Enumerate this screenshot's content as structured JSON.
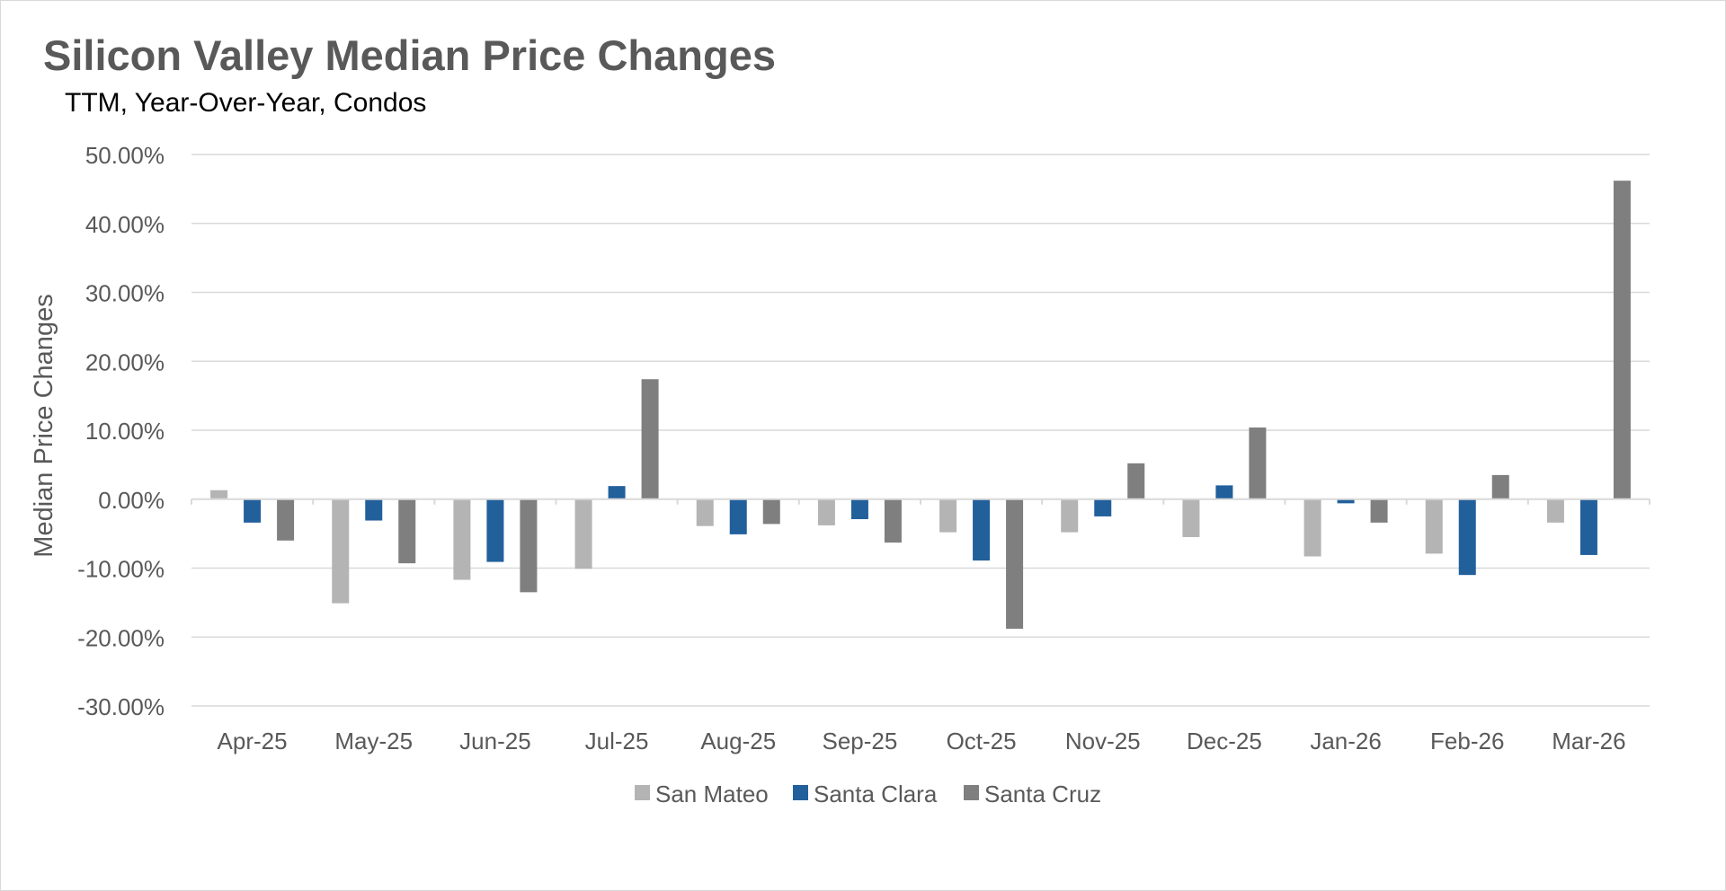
{
  "chart_data": {
    "type": "bar",
    "title": "Silicon Valley Median Price Changes",
    "subtitle": "TTM, Year-Over-Year,  Condos",
    "xlabel": "",
    "ylabel": "Median Price Changes",
    "ylim": [
      -30,
      50
    ],
    "yticks": [
      50,
      40,
      30,
      20,
      10,
      0,
      -10,
      -20,
      -30
    ],
    "ytick_labels": [
      "50.00%",
      "40.00%",
      "30.00%",
      "20.00%",
      "10.00%",
      "0.00%",
      "-10.00%",
      "-20.00%",
      "-30.00%"
    ],
    "grid": true,
    "legend_position": "bottom",
    "categories": [
      "Apr-25",
      "May-25",
      "Jun-25",
      "Jul-25",
      "Aug-25",
      "Sep-25",
      "Oct-25",
      "Nov-25",
      "Dec-25",
      "Jan-26",
      "Feb-26",
      "Mar-26"
    ],
    "series": [
      {
        "name": "San Mateo",
        "color": "#b4b4b4",
        "values": [
          1.3,
          -15.1,
          -11.7,
          -10.1,
          -3.9,
          -3.8,
          -4.8,
          -4.8,
          -5.5,
          -8.3,
          -7.9,
          -3.4
        ]
      },
      {
        "name": "Santa Clara",
        "color": "#22609c",
        "values": [
          -3.4,
          -3.1,
          -9.1,
          1.9,
          -5.1,
          -2.9,
          -8.9,
          -2.5,
          2.0,
          -0.6,
          -11.0,
          -8.1
        ]
      },
      {
        "name": "Santa Cruz",
        "color": "#7f7f7f",
        "values": [
          -6.0,
          -9.3,
          -13.5,
          17.4,
          -3.6,
          -6.3,
          -18.8,
          5.2,
          10.4,
          -3.4,
          3.5,
          46.2
        ]
      }
    ]
  }
}
